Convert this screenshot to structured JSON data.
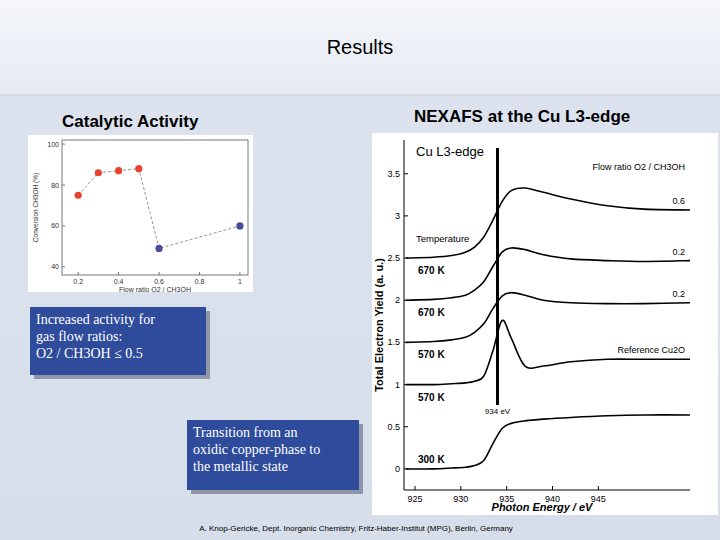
{
  "slide": {
    "title": "Results",
    "footer": "A. Knop-Gericke, Dept. Inorganic Chemistry, Fritz-Haber-Institut (MPG), Berlin, Germany",
    "text_boxes": [
      {
        "lines": [
          "Increased activity for",
          "gas flow ratios:",
          "O2 / CH3OH ≤ 0.5"
        ]
      },
      {
        "lines": [
          "Transition from an",
          "oxidic copper-phase to",
          "the metallic state"
        ]
      }
    ]
  },
  "chart_data": [
    {
      "type": "scatter",
      "title": "Catalytic Activity",
      "x_label": "Flow ratio O2 / CH3OH",
      "y_label": "Conversion CH3OH (%)",
      "x": [
        0.2,
        0.3,
        0.4,
        0.5,
        0.6,
        1.0
      ],
      "values": [
        75,
        86,
        87,
        88,
        49,
        60
      ],
      "colors": [
        "#e5432d",
        "#e5432d",
        "#e5432d",
        "#e5432d",
        "#4a4a9a",
        "#4a4a9a"
      ],
      "marker": "circle",
      "line_style": "dashed",
      "xlim": [
        0.12,
        1.04
      ],
      "ylim": [
        36,
        102
      ],
      "xticks": [
        0.2,
        0.4,
        0.6,
        0.8,
        1
      ],
      "yticks": [
        40,
        60,
        80,
        100
      ]
    },
    {
      "type": "line",
      "title": "NEXAFS at the Cu L3-edge",
      "x_label": "Photon Energy / eV",
      "y_label": "Total Electron Yield (a. u.)",
      "x": [
        924,
        927,
        929,
        930.5,
        931.5,
        932.5,
        933.5,
        934.5,
        935.5,
        937,
        939,
        942,
        946,
        950,
        955
      ],
      "series": [
        {
          "name": "670 K",
          "ratio": "0.6",
          "color": "#000000",
          "values": [
            2.5,
            2.51,
            2.53,
            2.57,
            2.63,
            2.75,
            2.95,
            3.17,
            3.3,
            3.33,
            3.28,
            3.2,
            3.12,
            3.08,
            3.07
          ]
        },
        {
          "name": "670 K",
          "ratio": "0.2",
          "color": "#000000",
          "values": [
            2.0,
            2.01,
            2.03,
            2.06,
            2.12,
            2.22,
            2.4,
            2.57,
            2.62,
            2.6,
            2.54,
            2.49,
            2.47,
            2.46,
            2.47
          ]
        },
        {
          "name": "570 K",
          "ratio": "0.2",
          "color": "#000000",
          "values": [
            1.5,
            1.51,
            1.53,
            1.56,
            1.62,
            1.72,
            1.9,
            2.05,
            2.09,
            2.06,
            2.0,
            1.97,
            1.96,
            1.96,
            1.97
          ]
        },
        {
          "name": "570 K",
          "ratio": "Reference Cu2O",
          "color": "#000000",
          "values": [
            1.0,
            1.0,
            1.01,
            1.02,
            1.04,
            1.1,
            1.4,
            1.76,
            1.55,
            1.22,
            1.22,
            1.27,
            1.3,
            1.3,
            1.3
          ]
        },
        {
          "name": "300 K",
          "color": "#000000",
          "values": [
            0.0,
            0.0,
            0.01,
            0.02,
            0.04,
            0.1,
            0.3,
            0.48,
            0.54,
            0.57,
            0.59,
            0.61,
            0.63,
            0.64,
            0.64
          ]
        }
      ],
      "annotations": {
        "edge": "Cu L3-edge",
        "ratio_header": "Flow ratio O2 / CH3OH",
        "temperature_header": "Temperature",
        "marker_line": {
          "value": 934,
          "label": "934 eV"
        }
      },
      "xlim": [
        923.8,
        955
      ],
      "ylim": [
        -0.25,
        3.9
      ],
      "xticks": [
        925,
        930,
        935,
        940,
        945
      ],
      "yticks": [
        0,
        0.5,
        1,
        1.5,
        2,
        2.5,
        3,
        3.5
      ]
    }
  ]
}
